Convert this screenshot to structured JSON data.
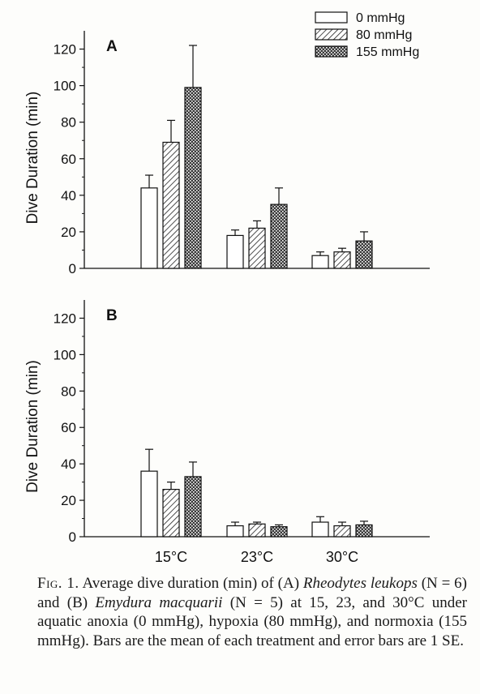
{
  "chart_data": [
    {
      "type": "bar",
      "panel_label": "A",
      "ylabel": "Dive Duration (min)",
      "xlabel": "",
      "ylim": [
        0,
        130
      ],
      "yticks": [
        0,
        20,
        40,
        60,
        80,
        100,
        120
      ],
      "categories": [
        "15°C",
        "23°C",
        "30°C"
      ],
      "show_category_labels": false,
      "series": [
        {
          "name": "0 mmHg",
          "values": [
            44,
            18,
            7
          ],
          "errors": [
            7,
            3,
            2
          ]
        },
        {
          "name": "80 mmHg",
          "values": [
            69,
            22,
            9
          ],
          "errors": [
            12,
            4,
            2
          ]
        },
        {
          "name": "155 mmHg",
          "values": [
            99,
            35,
            15
          ],
          "errors": [
            23,
            9,
            5
          ]
        }
      ],
      "legend_position": "top-right",
      "grid": false
    },
    {
      "type": "bar",
      "panel_label": "B",
      "ylabel": "Dive Duration (min)",
      "xlabel": "",
      "ylim": [
        0,
        130
      ],
      "yticks": [
        0,
        20,
        40,
        60,
        80,
        100,
        120
      ],
      "categories": [
        "15°C",
        "23°C",
        "30°C"
      ],
      "show_category_labels": true,
      "series": [
        {
          "name": "0 mmHg",
          "values": [
            36,
            6,
            8
          ],
          "errors": [
            12,
            2,
            3
          ]
        },
        {
          "name": "80 mmHg",
          "values": [
            26,
            7,
            6
          ],
          "errors": [
            4,
            1,
            2
          ]
        },
        {
          "name": "155 mmHg",
          "values": [
            33,
            5.5,
            6.5
          ],
          "errors": [
            8,
            1,
            2
          ]
        }
      ],
      "grid": false
    }
  ],
  "legend": {
    "items": [
      "0 mmHg",
      "80 mmHg",
      "155 mmHg"
    ]
  },
  "series_styles": [
    {
      "fill": "white"
    },
    {
      "fill": "hatch"
    },
    {
      "fill": "crosshatch"
    }
  ],
  "caption": {
    "fig_label": "Fig. 1.",
    "p1": "Average dive duration (min) of (A) ",
    "species_a": "Rheodytes leukops",
    "p2": " (N = 6) and (B) ",
    "species_b": "Emydura macquarii",
    "p3": " (N = 5) at 15, 23, and 30°C under aquatic anoxia (0 mmHg), hypoxia (80 mmHg), and normoxia (155 mmHg). Bars are the mean of each treatment and error bars are 1 SE."
  }
}
